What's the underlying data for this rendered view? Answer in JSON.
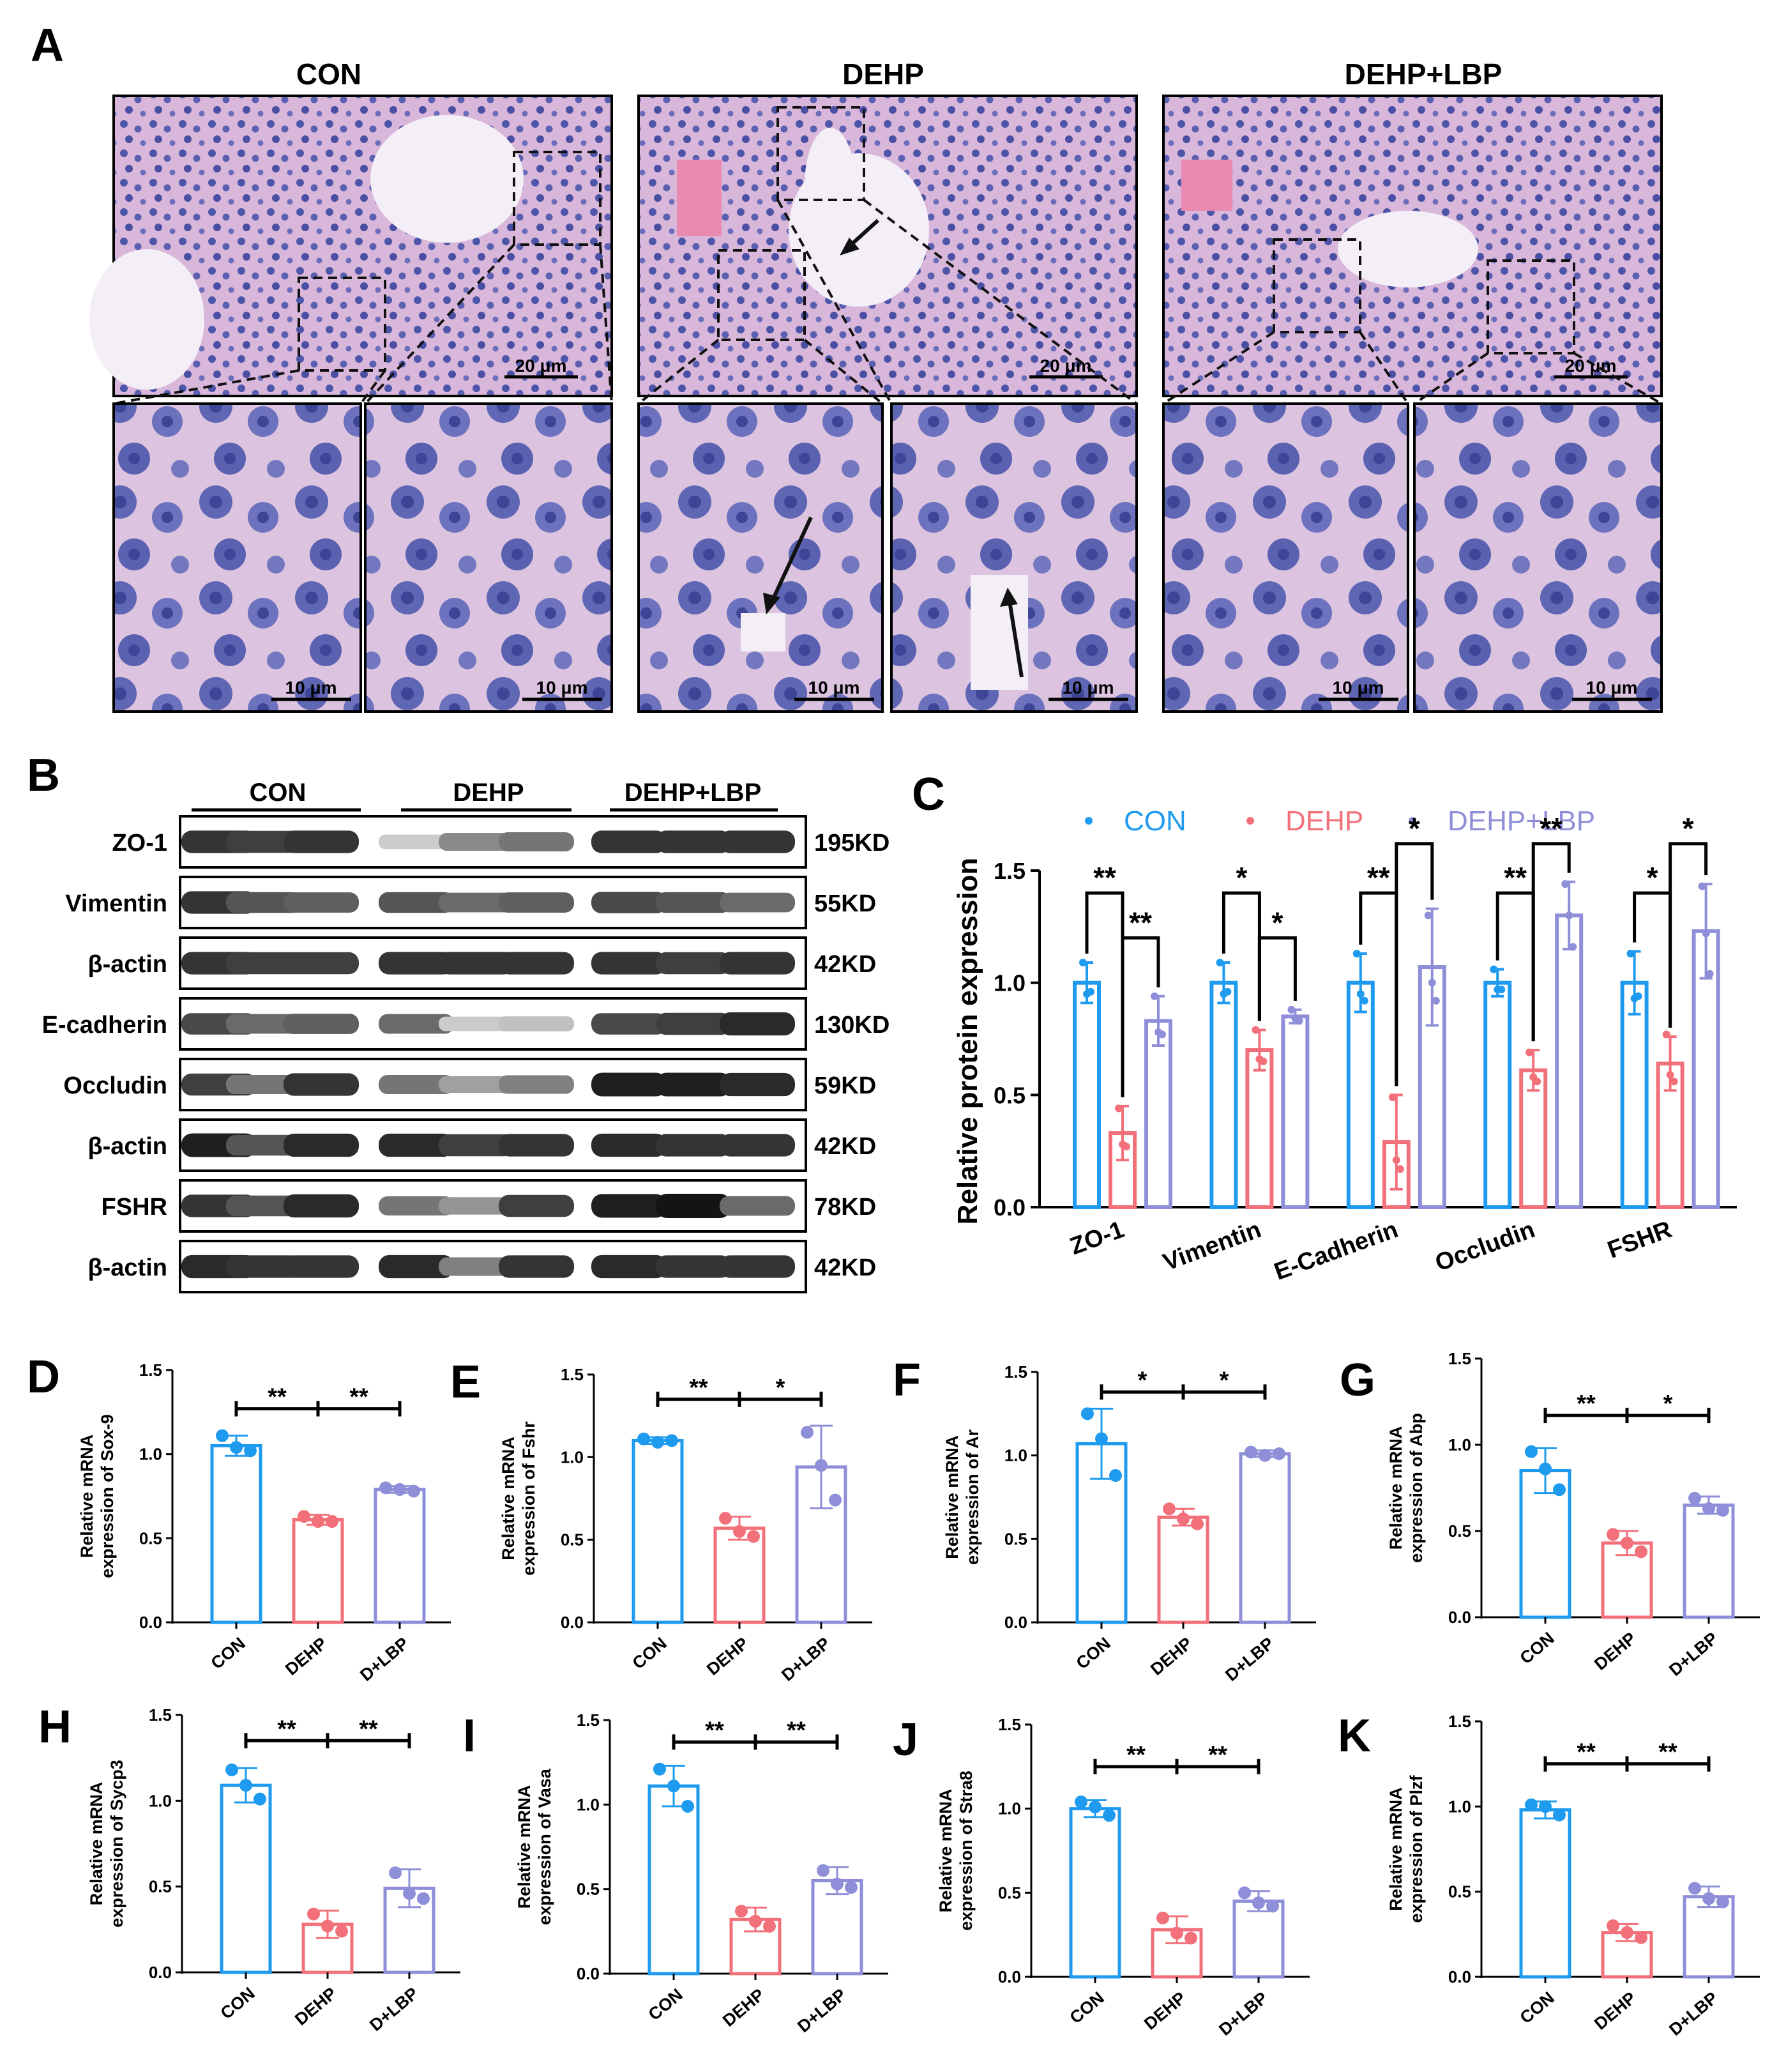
{
  "colors": {
    "con": "#1E9BEF",
    "dehp": "#F2707A",
    "lbp": "#8E8FD8",
    "h_and_e_bg": "#D7B3D9",
    "nuclei": "#4A4FA3",
    "stroma": "#E77FA6"
  },
  "panelA": {
    "letter": "A",
    "groups": [
      "CON",
      "DEHP",
      "DEHP+LBP"
    ],
    "scale_top": "20 μm",
    "scale_bottom": "10 μm"
  },
  "panelB": {
    "letter": "B",
    "groups": [
      "CON",
      "DEHP",
      "DEHP+LBP"
    ],
    "blots": [
      {
        "label": "ZO-1",
        "kd": "195KD",
        "intensity": [
          0.85,
          0.8,
          0.85,
          0.15,
          0.45,
          0.55,
          0.85,
          0.85,
          0.85
        ]
      },
      {
        "label": "Vimentin",
        "kd": "55KD",
        "intensity": [
          0.85,
          0.7,
          0.65,
          0.7,
          0.6,
          0.65,
          0.75,
          0.7,
          0.6
        ]
      },
      {
        "label": "β-actin",
        "kd": "42KD",
        "intensity": [
          0.85,
          0.8,
          0.8,
          0.85,
          0.85,
          0.85,
          0.85,
          0.8,
          0.85
        ]
      },
      {
        "label": "E-cadherin",
        "kd": "130KD",
        "intensity": [
          0.75,
          0.6,
          0.65,
          0.6,
          0.15,
          0.2,
          0.75,
          0.8,
          0.9
        ]
      },
      {
        "label": "Occludin",
        "kd": "59KD",
        "intensity": [
          0.8,
          0.55,
          0.85,
          0.55,
          0.35,
          0.5,
          0.95,
          0.95,
          0.9
        ]
      },
      {
        "label": "β-actin",
        "kd": "42KD",
        "intensity": [
          0.95,
          0.7,
          0.9,
          0.9,
          0.8,
          0.85,
          0.9,
          0.85,
          0.85
        ]
      },
      {
        "label": "FSHR",
        "kd": "78KD",
        "intensity": [
          0.85,
          0.7,
          0.9,
          0.55,
          0.4,
          0.8,
          0.95,
          1.0,
          0.6
        ]
      },
      {
        "label": "β-actin",
        "kd": "42KD",
        "intensity": [
          0.9,
          0.85,
          0.85,
          0.9,
          0.5,
          0.85,
          0.9,
          0.85,
          0.85
        ]
      }
    ]
  },
  "chart_data": [
    {
      "letter": "C",
      "type": "bar",
      "ylabel": "Relative protein expression",
      "ylim": [
        0,
        1.5
      ],
      "yticks": [
        "0.0",
        "0.5",
        "1.0",
        "1.5"
      ],
      "legend": [
        "CON",
        "DEHP",
        "DEHP+LBP"
      ],
      "categories": [
        "ZO-1",
        "Vimentin",
        "E-Cadherin",
        "Occludin",
        "FSHR"
      ],
      "series": [
        {
          "name": "CON",
          "values": [
            1.0,
            1.0,
            1.0,
            1.0,
            1.0
          ],
          "err": [
            0.09,
            0.09,
            0.13,
            0.06,
            0.14
          ],
          "points": [
            [
              1.09,
              0.95,
              0.96
            ],
            [
              1.09,
              0.95,
              0.96
            ],
            [
              1.13,
              0.95,
              0.92
            ],
            [
              1.06,
              0.97,
              0.97
            ],
            [
              1.13,
              0.93,
              0.94
            ]
          ]
        },
        {
          "name": "DEHP",
          "values": [
            0.33,
            0.7,
            0.29,
            0.61,
            0.64
          ],
          "err": [
            0.12,
            0.09,
            0.21,
            0.09,
            0.12
          ],
          "points": [
            [
              0.44,
              0.28,
              0.27
            ],
            [
              0.79,
              0.66,
              0.65
            ],
            [
              0.49,
              0.21,
              0.17
            ],
            [
              0.69,
              0.58,
              0.56
            ],
            [
              0.77,
              0.59,
              0.56
            ]
          ]
        },
        {
          "name": "DEHP+LBP",
          "values": [
            0.83,
            0.85,
            1.07,
            1.3,
            1.23
          ],
          "err": [
            0.11,
            0.03,
            0.26,
            0.15,
            0.21
          ],
          "points": [
            [
              0.94,
              0.78,
              0.77
            ],
            [
              0.88,
              0.84,
              0.83
            ],
            [
              1.3,
              1.0,
              0.92
            ],
            [
              1.44,
              1.3,
              1.16
            ],
            [
              1.43,
              1.22,
              1.04
            ]
          ]
        }
      ],
      "sig": [
        {
          "cat": 0,
          "a": 0,
          "b": 1,
          "stars": "**",
          "level": 1.4
        },
        {
          "cat": 0,
          "a": 1,
          "b": 2,
          "stars": "**",
          "level": 1.2
        },
        {
          "cat": 1,
          "a": 0,
          "b": 1,
          "stars": "*",
          "level": 1.4
        },
        {
          "cat": 1,
          "a": 1,
          "b": 2,
          "stars": "*",
          "level": 1.2
        },
        {
          "cat": 2,
          "a": 0,
          "b": 1,
          "stars": "**",
          "level": 1.4
        },
        {
          "cat": 2,
          "a": 1,
          "b": 2,
          "stars": "*",
          "level": 1.62
        },
        {
          "cat": 3,
          "a": 0,
          "b": 1,
          "stars": "**",
          "level": 1.4
        },
        {
          "cat": 3,
          "a": 1,
          "b": 2,
          "stars": "**",
          "level": 1.62
        },
        {
          "cat": 4,
          "a": 0,
          "b": 1,
          "stars": "*",
          "level": 1.4
        },
        {
          "cat": 4,
          "a": 1,
          "b": 2,
          "stars": "*",
          "level": 1.62
        }
      ]
    },
    {
      "letter": "D",
      "type": "bar",
      "ylabel": [
        "Relative mRNA",
        "expression of Sox-9"
      ],
      "categories": [
        "CON",
        "DEHP",
        "D+LBP"
      ],
      "ylim": [
        0,
        1.5
      ],
      "yticks": [
        "0.0",
        "0.5",
        "1.0",
        "1.5"
      ],
      "values": [
        1.05,
        0.61,
        0.79
      ],
      "err": [
        0.06,
        0.03,
        0.02
      ],
      "points": [
        [
          1.11,
          1.04,
          1.02
        ],
        [
          0.63,
          0.6,
          0.6
        ],
        [
          0.8,
          0.79,
          0.78
        ]
      ],
      "sig": [
        "**",
        "**"
      ],
      "sig_level": 1.27
    },
    {
      "letter": "E",
      "type": "bar",
      "ylabel": [
        "Relative mRNA",
        "expression of Fshr"
      ],
      "categories": [
        "CON",
        "DEHP",
        "D+LBP"
      ],
      "ylim": [
        0,
        1.5
      ],
      "yticks": [
        "0.0",
        "0.5",
        "1.0",
        "1.5"
      ],
      "values": [
        1.1,
        0.57,
        0.94
      ],
      "err": [
        0.02,
        0.07,
        0.25
      ],
      "points": [
        [
          1.11,
          1.09,
          1.1
        ],
        [
          0.63,
          0.55,
          0.52
        ],
        [
          1.15,
          0.95,
          0.74
        ]
      ],
      "sig": [
        "**",
        "*"
      ],
      "sig_level": 1.35
    },
    {
      "letter": "F",
      "type": "bar",
      "ylabel": [
        "Relative mRNA",
        "expression of Ar"
      ],
      "categories": [
        "CON",
        "DEHP",
        "D+LBP"
      ],
      "ylim": [
        0,
        1.5
      ],
      "yticks": [
        "0.0",
        "0.5",
        "1.0",
        "1.5"
      ],
      "values": [
        1.07,
        0.63,
        1.01
      ],
      "err": [
        0.21,
        0.05,
        0.02
      ],
      "points": [
        [
          1.25,
          1.1,
          0.88
        ],
        [
          0.68,
          0.62,
          0.59
        ],
        [
          1.02,
          1.0,
          1.01
        ]
      ],
      "sig": [
        "*",
        "*"
      ],
      "sig_level": 1.38
    },
    {
      "letter": "G",
      "type": "bar",
      "ylabel": [
        "Relative mRNA",
        "expression of Abp"
      ],
      "categories": [
        "CON",
        "DEHP",
        "D+LBP"
      ],
      "ylim": [
        0,
        1.5
      ],
      "yticks": [
        "0.0",
        "0.5",
        "1.0",
        "1.5"
      ],
      "values": [
        0.85,
        0.43,
        0.65
      ],
      "err": [
        0.13,
        0.07,
        0.05
      ],
      "points": [
        [
          0.96,
          0.86,
          0.74
        ],
        [
          0.48,
          0.43,
          0.38
        ],
        [
          0.69,
          0.63,
          0.62
        ]
      ],
      "sig": [
        "**",
        "*"
      ],
      "sig_level": 1.17
    },
    {
      "letter": "H",
      "type": "bar",
      "ylabel": [
        "Relative mRNA",
        "expression of Sycp3"
      ],
      "categories": [
        "CON",
        "DEHP",
        "D+LBP"
      ],
      "ylim": [
        0,
        1.5
      ],
      "yticks": [
        "0.0",
        "0.5",
        "1.0",
        "1.5"
      ],
      "values": [
        1.09,
        0.28,
        0.49
      ],
      "err": [
        0.1,
        0.08,
        0.11
      ],
      "points": [
        [
          1.18,
          1.09,
          1.01
        ],
        [
          0.34,
          0.27,
          0.24
        ],
        [
          0.58,
          0.46,
          0.43
        ]
      ],
      "sig": [
        "**",
        "**"
      ],
      "sig_level": 1.35
    },
    {
      "letter": "I",
      "type": "bar",
      "ylabel": [
        "Relative mRNA",
        "expression of Vasa"
      ],
      "categories": [
        "CON",
        "DEHP",
        "D+LBP"
      ],
      "ylim": [
        0,
        1.5
      ],
      "yticks": [
        "0.0",
        "0.5",
        "1.0",
        "1.5"
      ],
      "values": [
        1.11,
        0.32,
        0.55
      ],
      "err": [
        0.12,
        0.07,
        0.08
      ],
      "points": [
        [
          1.21,
          1.11,
          0.99
        ],
        [
          0.37,
          0.31,
          0.28
        ],
        [
          0.61,
          0.53,
          0.51
        ]
      ],
      "sig": [
        "**",
        "**"
      ],
      "sig_level": 1.37
    },
    {
      "letter": "J",
      "type": "bar",
      "ylabel": [
        "Relative mRNA",
        "expression of Stra8"
      ],
      "categories": [
        "CON",
        "DEHP",
        "D+LBP"
      ],
      "ylim": [
        0,
        1.5
      ],
      "yticks": [
        "0.0",
        "0.5",
        "1.0",
        "1.5"
      ],
      "values": [
        1.0,
        0.28,
        0.45
      ],
      "err": [
        0.05,
        0.08,
        0.06
      ],
      "points": [
        [
          1.04,
          1.01,
          0.96
        ],
        [
          0.35,
          0.26,
          0.23
        ],
        [
          0.5,
          0.44,
          0.42
        ]
      ],
      "sig": [
        "**",
        "**"
      ],
      "sig_level": 1.25
    },
    {
      "letter": "K",
      "type": "bar",
      "ylabel": [
        "Relative mRNA",
        "expression of Plzf"
      ],
      "categories": [
        "CON",
        "DEHP",
        "D+LBP"
      ],
      "ylim": [
        0,
        1.5
      ],
      "yticks": [
        "0.0",
        "0.5",
        "1.0",
        "1.5"
      ],
      "values": [
        0.98,
        0.26,
        0.47
      ],
      "err": [
        0.05,
        0.05,
        0.06
      ],
      "points": [
        [
          1.01,
          1.0,
          0.95
        ],
        [
          0.3,
          0.26,
          0.23
        ],
        [
          0.52,
          0.46,
          0.44
        ]
      ],
      "sig": [
        "**",
        "**"
      ],
      "sig_level": 1.25
    }
  ]
}
